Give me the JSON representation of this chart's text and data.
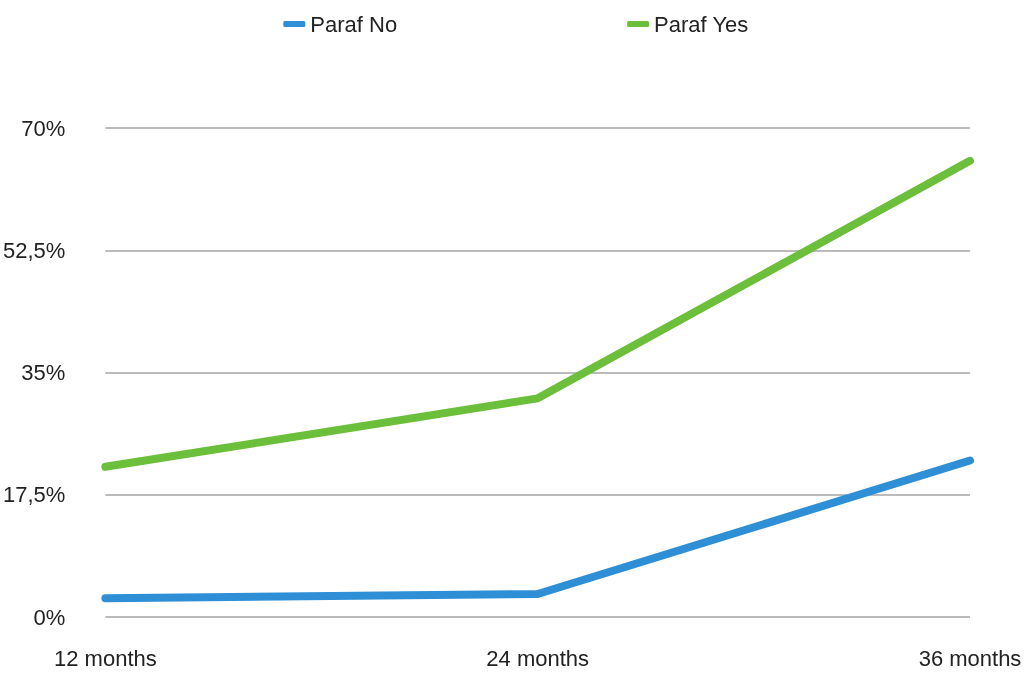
{
  "chart_data": {
    "type": "line",
    "categories": [
      "12 months",
      "24 months",
      "36 months"
    ],
    "series": [
      {
        "name": "Paraf No",
        "color": "#2f8fd6",
        "values": [
          2.7,
          3.3,
          22.4
        ]
      },
      {
        "name": "Paraf Yes",
        "color": "#6cbf3a",
        "values": [
          21.5,
          31.3,
          65.3
        ]
      }
    ],
    "ylim": [
      0,
      70
    ],
    "yticks": [
      {
        "value": 0,
        "label": "0%"
      },
      {
        "value": 17.5,
        "label": "17,5%"
      },
      {
        "value": 35,
        "label": "35%"
      },
      {
        "value": 52.5,
        "label": "52,5%"
      },
      {
        "value": 70,
        "label": "70%"
      }
    ],
    "grid": "y",
    "legend": "top",
    "line_style": "solid"
  }
}
